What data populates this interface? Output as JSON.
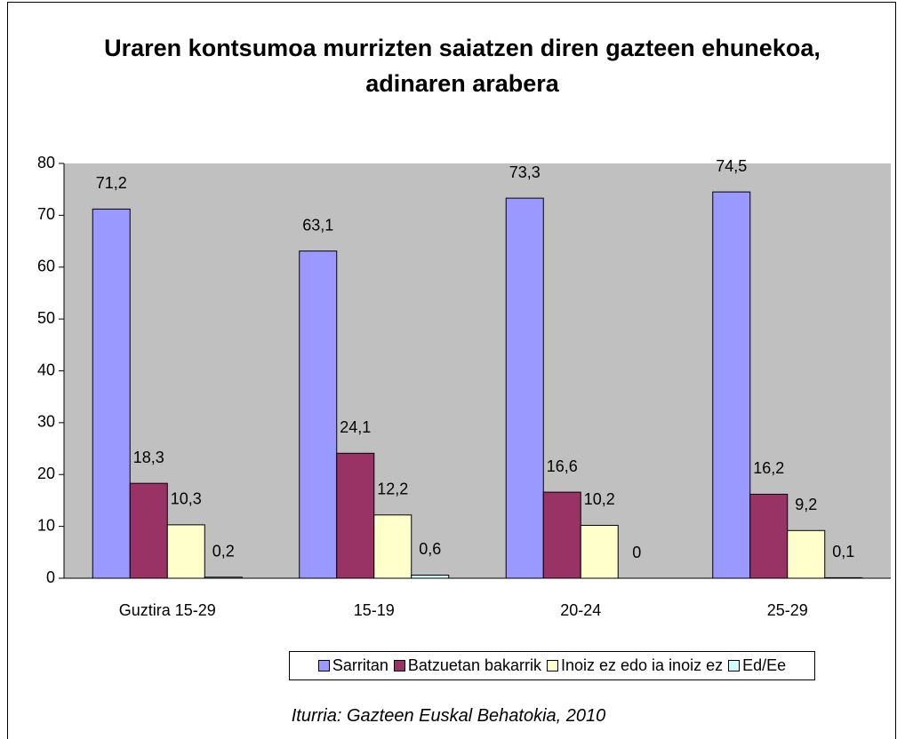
{
  "chart_data": {
    "type": "bar",
    "title": "Uraren kontsumoa murrizten saiatzen diren gazteen ehunekoa, adinaren arabera",
    "categories": [
      "Guztira 15-29",
      "15-19",
      "20-24",
      "25-29"
    ],
    "series": [
      {
        "name": "Sarritan",
        "color": "#9999ff",
        "values": [
          71.2,
          63.1,
          73.3,
          74.5
        ],
        "value_labels": [
          "71,2",
          "63,1",
          "73,3",
          "74,5"
        ]
      },
      {
        "name": "Batzuetan bakarrik",
        "color": "#993366",
        "values": [
          18.3,
          24.1,
          16.6,
          16.2
        ],
        "value_labels": [
          "18,3",
          "24,1",
          "16,6",
          "16,2"
        ]
      },
      {
        "name": "Inoiz ez edo ia inoiz ez",
        "color": "#ffffcc",
        "values": [
          10.3,
          12.2,
          10.2,
          9.2
        ],
        "value_labels": [
          "10,3",
          "12,2",
          "10,2",
          "9,2"
        ]
      },
      {
        "name": "Ed/Ee",
        "color": "#ccffff",
        "values": [
          0.2,
          0.6,
          0,
          0.1
        ],
        "value_labels": [
          "0,2",
          "0,6",
          "0",
          "0,1"
        ]
      }
    ],
    "ylim": [
      0,
      80
    ],
    "yticks": [
      0,
      10,
      20,
      30,
      40,
      50,
      60,
      70,
      80
    ],
    "grid": false,
    "plot_background": "#c0c0c0",
    "legend": "bottom",
    "source": "Iturria: Gazteen Euskal Behatokia, 2010"
  }
}
